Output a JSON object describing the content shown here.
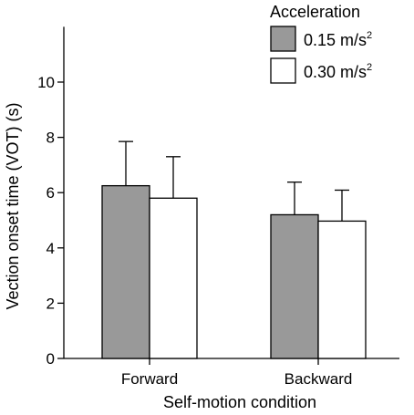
{
  "chart_data": {
    "type": "bar",
    "xlabel": "Self-motion condition",
    "ylabel": "Vection onset time (VOT) (s)",
    "ylim": [
      0,
      12
    ],
    "yticks": [
      0,
      2,
      4,
      6,
      8,
      10
    ],
    "grid": false,
    "legend": {
      "title": "Acceleration",
      "placement": "top-right"
    },
    "categories": [
      "Forward",
      "Backward"
    ],
    "series": [
      {
        "label_main": "0.15 m/s",
        "label_sup": "2",
        "color": "#999999",
        "values": [
          6.25,
          5.2
        ],
        "errors": [
          1.6,
          1.18
        ]
      },
      {
        "label_main": "0.30 m/s",
        "label_sup": "2",
        "color": "#ffffff",
        "values": [
          5.8,
          4.97
        ],
        "errors": [
          1.5,
          1.12
        ]
      }
    ]
  }
}
